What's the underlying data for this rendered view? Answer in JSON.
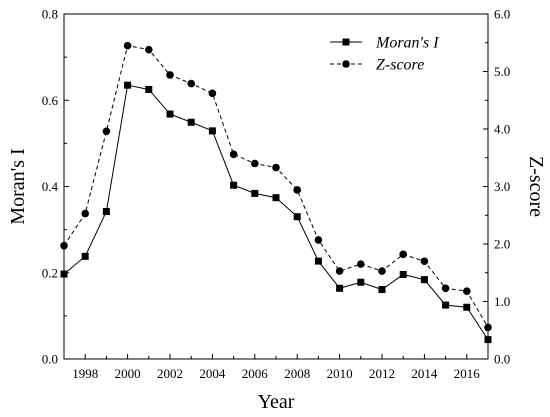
{
  "chart_data": {
    "type": "line",
    "title": "",
    "xlabel": "Year",
    "ylabel": "Moran's I",
    "y2label": "Z-score",
    "xlim": [
      1997,
      2017
    ],
    "ylim": [
      0,
      0.8
    ],
    "y2lim": [
      0,
      6.0
    ],
    "x_ticks": [
      1998,
      2000,
      2002,
      2004,
      2006,
      2008,
      2010,
      2012,
      2014,
      2016
    ],
    "x_tick_labels": [
      "1998",
      "2000",
      "2002",
      "2004",
      "2006",
      "2008",
      "2010",
      "2012",
      "2014",
      "2016"
    ],
    "y_ticks": [
      0,
      0.2,
      0.4,
      0.6,
      0.8
    ],
    "y_tick_labels": [
      "0.0",
      "0.2",
      "0.4",
      "0.6",
      "0.8"
    ],
    "y2_ticks": [
      0,
      1,
      2,
      3,
      4,
      5,
      6
    ],
    "y2_tick_labels": [
      "0.0",
      "1.0",
      "2.0",
      "3.0",
      "4.0",
      "5.0",
      "6.0"
    ],
    "grid": false,
    "legend_position": "top-right",
    "x": [
      1997,
      1998,
      1999,
      2000,
      2001,
      2002,
      2003,
      2004,
      2005,
      2006,
      2007,
      2008,
      2009,
      2010,
      2011,
      2012,
      2013,
      2014,
      2015,
      2016,
      2017
    ],
    "series": [
      {
        "name": "Moran's I",
        "axis": "left",
        "line_style": "solid",
        "marker": "square",
        "color": "#000000",
        "values": [
          0.197,
          0.238,
          0.342,
          0.635,
          0.625,
          0.568,
          0.549,
          0.529,
          0.403,
          0.384,
          0.374,
          0.33,
          0.227,
          0.164,
          0.178,
          0.161,
          0.196,
          0.184,
          0.125,
          0.12,
          0.045
        ]
      },
      {
        "name": "Z-score",
        "axis": "right",
        "line_style": "dashed",
        "marker": "circle",
        "color": "#000000",
        "values": [
          1.97,
          2.53,
          3.96,
          5.45,
          5.38,
          4.94,
          4.79,
          4.62,
          3.56,
          3.4,
          3.33,
          2.94,
          2.07,
          1.53,
          1.65,
          1.53,
          1.82,
          1.7,
          1.23,
          1.18,
          0.55
        ]
      }
    ]
  }
}
